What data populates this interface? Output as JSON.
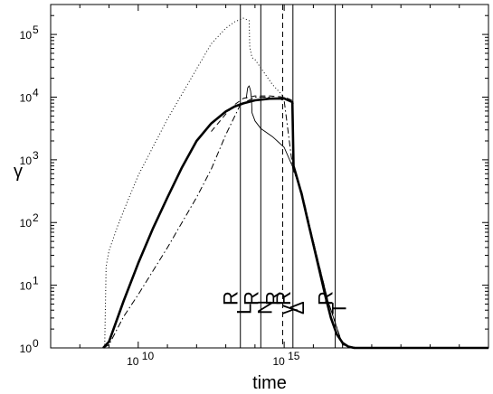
{
  "chart_data": {
    "type": "line",
    "title": "",
    "xlabel": "time",
    "ylabel": "γ",
    "x_scale": "log",
    "y_scale": "log",
    "xlim_log10": [
      7,
      22
    ],
    "ylim": [
      1,
      300000
    ],
    "x_ticks": [
      {
        "log10": 10,
        "base": "10",
        "exp": "10"
      },
      {
        "log10": 15,
        "base": "10",
        "exp": "15"
      }
    ],
    "y_ticks": [
      {
        "log10": 0,
        "base": "10",
        "exp": "0"
      },
      {
        "log10": 1,
        "base": "10",
        "exp": "1"
      },
      {
        "log10": 2,
        "base": "10",
        "exp": "2"
      },
      {
        "log10": 3,
        "base": "10",
        "exp": "3"
      },
      {
        "log10": 4,
        "base": "10",
        "exp": "4"
      },
      {
        "log10": 5,
        "base": "10",
        "exp": "5"
      }
    ],
    "vertical_markers": [
      {
        "label": "R",
        "sub": "L",
        "x_log10": 13.5,
        "style": "solid"
      },
      {
        "label": "R",
        "sub": "N",
        "x_log10": 14.2,
        "style": "solid"
      },
      {
        "label": "R",
        "sub": "γ",
        "x_log10": 14.95,
        "style": "dashed"
      },
      {
        "label": "R",
        "sub": "Δ",
        "x_log10": 15.3,
        "style": "solid"
      },
      {
        "label": "R",
        "sub": "T",
        "x_log10": 16.75,
        "style": "solid"
      }
    ],
    "series": [
      {
        "style": "thick",
        "x_log10": [
          8.8,
          9.0,
          9.5,
          10.0,
          10.5,
          11.0,
          11.5,
          12.0,
          12.5,
          13.0,
          13.3,
          13.6,
          14.0,
          14.5,
          15.0,
          15.28,
          15.3,
          15.32,
          15.4,
          15.6,
          15.8,
          16.0,
          16.2,
          16.4,
          16.6,
          16.8,
          17.0,
          17.2,
          17.4,
          17.6,
          17.8,
          18.0,
          22.0
        ],
        "y_log10": [
          0.0,
          0.1,
          0.75,
          1.35,
          1.9,
          2.4,
          2.88,
          3.3,
          3.58,
          3.77,
          3.85,
          3.9,
          3.95,
          3.975,
          3.98,
          3.92,
          3.45,
          2.9,
          2.78,
          2.45,
          2.05,
          1.65,
          1.25,
          0.85,
          0.48,
          0.22,
          0.08,
          0.02,
          0.0,
          0.0,
          0.0,
          0.0,
          0.0
        ]
      },
      {
        "style": "dotted",
        "x_log10": [
          8.85,
          8.9,
          9.0,
          9.3,
          9.6,
          10.0,
          10.5,
          11.0,
          11.5,
          12.0,
          12.5,
          13.0,
          13.3,
          13.6,
          13.8,
          13.82,
          13.9,
          14.0,
          14.3,
          14.6,
          15.0
        ],
        "y_log10": [
          0.0,
          1.3,
          1.55,
          1.95,
          2.3,
          2.75,
          3.2,
          3.65,
          4.05,
          4.45,
          4.85,
          5.1,
          5.2,
          5.26,
          5.22,
          4.8,
          4.63,
          4.6,
          4.4,
          4.2,
          4.0
        ]
      },
      {
        "style": "dashdot",
        "x_log10": [
          8.8,
          9.0,
          9.5,
          10.0,
          11.0,
          12.0,
          12.5,
          13.0,
          13.5,
          14.0,
          14.5,
          15.0,
          15.3,
          15.6,
          16.0,
          16.5,
          17.0,
          17.5
        ],
        "y_log10": [
          0.0,
          0.05,
          0.5,
          0.85,
          1.6,
          2.4,
          2.85,
          3.4,
          3.88,
          4.0,
          4.0,
          3.95,
          2.85,
          2.5,
          1.7,
          0.75,
          0.05,
          0.0
        ]
      },
      {
        "style": "thin",
        "x_log10": [
          13.7,
          13.75,
          13.8,
          13.85,
          13.88,
          13.9,
          14.0,
          14.2,
          14.6,
          15.0,
          15.3,
          15.6,
          16.0,
          16.5,
          17.0,
          17.5
        ],
        "y_log10": [
          3.98,
          4.15,
          4.18,
          4.1,
          3.98,
          3.75,
          3.62,
          3.5,
          3.37,
          3.2,
          2.88,
          2.45,
          1.7,
          0.75,
          0.05,
          0.0
        ]
      },
      {
        "style": "dashed",
        "x_log10": [
          12.5,
          13.0,
          13.3,
          13.6,
          14.0,
          14.5,
          15.0,
          15.28,
          15.32
        ],
        "y_log10": [
          3.45,
          3.73,
          3.88,
          3.98,
          4.02,
          4.02,
          4.0,
          3.95,
          3.9
        ]
      }
    ]
  }
}
